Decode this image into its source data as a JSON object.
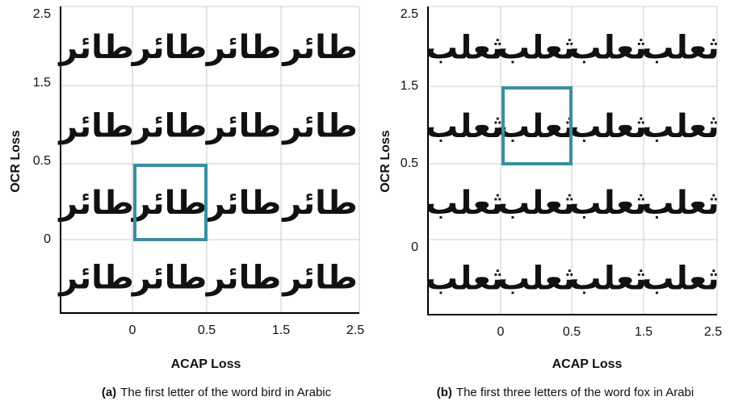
{
  "panels": [
    {
      "word": "طائر",
      "y_ticks": [
        "2.5",
        "1.5",
        "0.5",
        "0"
      ],
      "x_ticks": [
        "0",
        "0.5",
        "1.5",
        "2.5"
      ],
      "y_label": "OCR Loss",
      "x_label": "ACAP Loss",
      "caption_label": "(a)",
      "caption_text": "The first letter of the word bird in Arabic",
      "highlight_cell": [
        2,
        1
      ]
    },
    {
      "word": "ثعلب",
      "y_ticks": [
        "2.5",
        "1.5",
        "0.5",
        "0"
      ],
      "x_ticks": [
        "0",
        "0.5",
        "1.5",
        "2.5"
      ],
      "y_label": "OCR Loss",
      "x_label": "ACAP Loss",
      "caption_label": "(b)",
      "caption_text": "The first three letters of the word fox in Arabi",
      "highlight_cell": [
        1,
        1
      ]
    }
  ]
}
